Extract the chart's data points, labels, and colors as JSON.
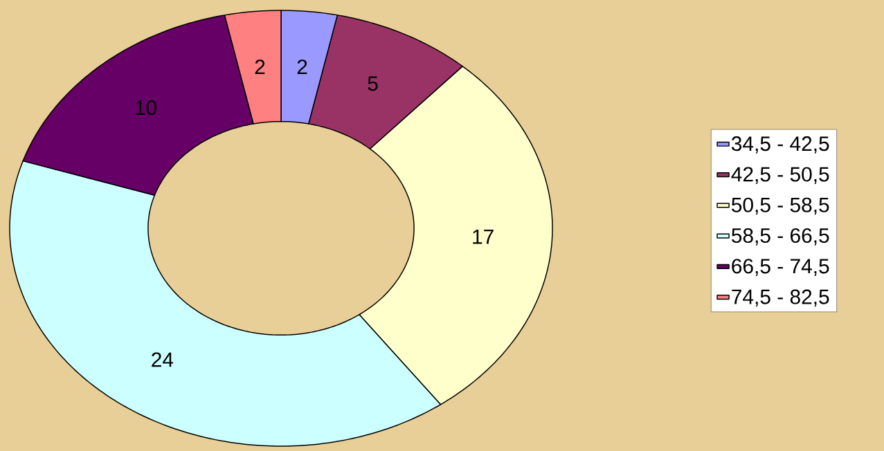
{
  "chart_data": {
    "type": "donut",
    "categories": [
      "34,5 - 42,5",
      "42,5 - 50,5",
      "50,5 - 58,5",
      "58,5 - 66,5",
      "66,5 - 74,5",
      "74,5 - 82,5"
    ],
    "values": [
      2,
      5,
      17,
      24,
      10,
      2
    ],
    "colors": [
      "#9999ff",
      "#993366",
      "#ffffcc",
      "#ccffff",
      "#660066",
      "#ff8080"
    ],
    "data_labels": true,
    "legend": "right"
  }
}
